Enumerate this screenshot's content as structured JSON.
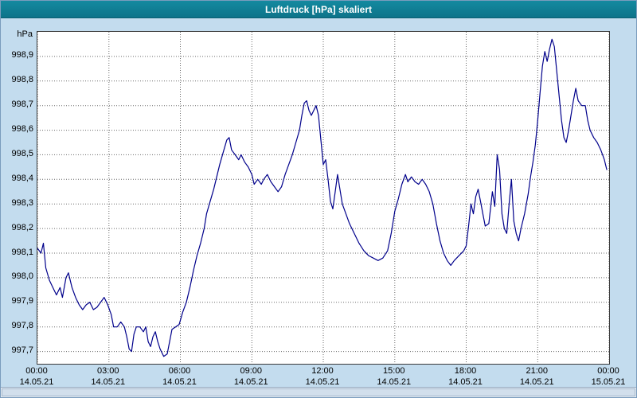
{
  "window": {
    "title": "Luftdruck [hPa] skaliert"
  },
  "colors": {
    "titlebar": "#0d7389",
    "background": "#c3dcee",
    "plot_background": "#ffffff",
    "grid": "#6a6a6a",
    "line": "#00008b"
  },
  "chart_data": {
    "type": "line",
    "title": "Luftdruck [hPa] skaliert",
    "xlabel": "",
    "ylabel": "hPa",
    "grid": true,
    "legend": "none",
    "line_color": "#00008b",
    "xlim": [
      0,
      24
    ],
    "ylim": [
      997.65,
      999.0
    ],
    "yticks": [
      {
        "value": 998.9,
        "label": "998,9"
      },
      {
        "value": 998.8,
        "label": "998,8"
      },
      {
        "value": 998.7,
        "label": "998,7"
      },
      {
        "value": 998.6,
        "label": "998,6"
      },
      {
        "value": 998.5,
        "label": "998,5"
      },
      {
        "value": 998.4,
        "label": "998,4"
      },
      {
        "value": 998.3,
        "label": "998,3"
      },
      {
        "value": 998.2,
        "label": "998,2"
      },
      {
        "value": 998.1,
        "label": "998,1"
      },
      {
        "value": 998.0,
        "label": "998,0"
      },
      {
        "value": 997.9,
        "label": "997,9"
      },
      {
        "value": 997.8,
        "label": "997,8"
      },
      {
        "value": 997.7,
        "label": "997,7"
      }
    ],
    "xticks": [
      {
        "hour": 0,
        "time": "00:00",
        "date": "14.05.21"
      },
      {
        "hour": 3,
        "time": "03:00",
        "date": "14.05.21"
      },
      {
        "hour": 6,
        "time": "06:00",
        "date": "14.05.21"
      },
      {
        "hour": 9,
        "time": "09:00",
        "date": "14.05.21"
      },
      {
        "hour": 12,
        "time": "12:00",
        "date": "14.05.21"
      },
      {
        "hour": 15,
        "time": "15:00",
        "date": "14.05.21"
      },
      {
        "hour": 18,
        "time": "18:00",
        "date": "14.05.21"
      },
      {
        "hour": 21,
        "time": "21:00",
        "date": "14.05.21"
      },
      {
        "hour": 24,
        "time": "00:00",
        "date": "15.05.21"
      }
    ],
    "x": [
      0.0,
      0.15,
      0.25,
      0.35,
      0.5,
      0.65,
      0.8,
      0.95,
      1.05,
      1.2,
      1.3,
      1.45,
      1.6,
      1.75,
      1.9,
      2.05,
      2.2,
      2.35,
      2.5,
      2.65,
      2.8,
      2.95,
      3.1,
      3.2,
      3.35,
      3.5,
      3.65,
      3.75,
      3.85,
      3.95,
      4.05,
      4.15,
      4.3,
      4.45,
      4.55,
      4.65,
      4.75,
      4.85,
      4.95,
      5.05,
      5.15,
      5.3,
      5.45,
      5.55,
      5.65,
      5.8,
      5.95,
      6.1,
      6.25,
      6.4,
      6.55,
      6.7,
      6.85,
      7.0,
      7.1,
      7.25,
      7.4,
      7.5,
      7.65,
      7.8,
      7.95,
      8.05,
      8.15,
      8.3,
      8.45,
      8.55,
      8.7,
      8.85,
      9.0,
      9.1,
      9.25,
      9.4,
      9.5,
      9.65,
      9.8,
      9.95,
      10.1,
      10.25,
      10.4,
      10.55,
      10.7,
      10.85,
      11.0,
      11.1,
      11.2,
      11.3,
      11.4,
      11.5,
      11.6,
      11.7,
      11.8,
      11.9,
      12.0,
      12.1,
      12.2,
      12.3,
      12.4,
      12.5,
      12.6,
      12.7,
      12.8,
      12.95,
      13.1,
      13.3,
      13.5,
      13.7,
      13.9,
      14.1,
      14.3,
      14.5,
      14.7,
      14.85,
      15.0,
      15.15,
      15.3,
      15.45,
      15.55,
      15.7,
      15.85,
      16.0,
      16.15,
      16.3,
      16.45,
      16.6,
      16.75,
      16.9,
      17.05,
      17.2,
      17.35,
      17.5,
      17.7,
      17.9,
      18.0,
      18.1,
      18.2,
      18.3,
      18.4,
      18.5,
      18.6,
      18.7,
      18.8,
      18.95,
      19.1,
      19.2,
      19.3,
      19.4,
      19.5,
      19.6,
      19.7,
      19.8,
      19.9,
      20.0,
      20.1,
      20.2,
      20.3,
      20.45,
      20.6,
      20.7,
      20.8,
      20.9,
      21.0,
      21.1,
      21.2,
      21.3,
      21.4,
      21.5,
      21.6,
      21.7,
      21.8,
      21.9,
      22.0,
      22.1,
      22.2,
      22.3,
      22.4,
      22.5,
      22.6,
      22.7,
      22.85,
      23.0,
      23.1,
      23.2,
      23.35,
      23.5,
      23.65,
      23.8,
      23.9
    ],
    "values": [
      998.12,
      998.1,
      998.14,
      998.04,
      997.99,
      997.96,
      997.93,
      997.96,
      997.92,
      998.0,
      998.02,
      997.96,
      997.92,
      997.89,
      997.87,
      997.89,
      997.9,
      997.87,
      997.88,
      997.9,
      997.92,
      997.89,
      997.85,
      997.8,
      997.8,
      997.82,
      997.8,
      997.76,
      997.71,
      997.7,
      997.77,
      997.8,
      997.8,
      997.78,
      997.8,
      997.74,
      997.72,
      997.76,
      997.78,
      997.74,
      997.71,
      997.68,
      997.69,
      997.74,
      997.79,
      997.8,
      997.81,
      997.86,
      997.9,
      997.96,
      998.03,
      998.09,
      998.14,
      998.2,
      998.26,
      998.31,
      998.36,
      998.4,
      998.46,
      998.51,
      998.56,
      998.57,
      998.52,
      998.5,
      998.48,
      998.5,
      998.47,
      998.45,
      998.42,
      998.38,
      998.4,
      998.38,
      998.4,
      998.42,
      998.39,
      998.37,
      998.35,
      998.37,
      998.42,
      998.46,
      998.5,
      998.55,
      998.6,
      998.66,
      998.71,
      998.72,
      998.68,
      998.66,
      998.68,
      998.7,
      998.66,
      998.56,
      998.46,
      998.48,
      998.4,
      998.31,
      998.28,
      998.35,
      998.42,
      998.36,
      998.3,
      998.26,
      998.22,
      998.18,
      998.14,
      998.11,
      998.09,
      998.08,
      998.07,
      998.08,
      998.11,
      998.18,
      998.27,
      998.32,
      998.38,
      998.42,
      998.39,
      998.41,
      998.39,
      998.38,
      998.4,
      998.38,
      998.35,
      998.3,
      998.22,
      998.15,
      998.1,
      998.07,
      998.05,
      998.07,
      998.09,
      998.11,
      998.13,
      998.21,
      998.3,
      998.26,
      998.33,
      998.36,
      998.31,
      998.26,
      998.21,
      998.22,
      998.35,
      998.29,
      998.5,
      998.44,
      998.26,
      998.2,
      998.18,
      998.3,
      998.4,
      998.23,
      998.18,
      998.15,
      998.2,
      998.26,
      998.34,
      998.41,
      998.47,
      998.54,
      998.64,
      998.75,
      998.86,
      998.92,
      998.88,
      998.93,
      998.97,
      998.94,
      998.84,
      998.74,
      998.64,
      998.57,
      998.55,
      998.6,
      998.66,
      998.72,
      998.77,
      998.72,
      998.7,
      998.7,
      998.64,
      998.6,
      998.57,
      998.55,
      998.52,
      998.48,
      998.44
    ]
  }
}
